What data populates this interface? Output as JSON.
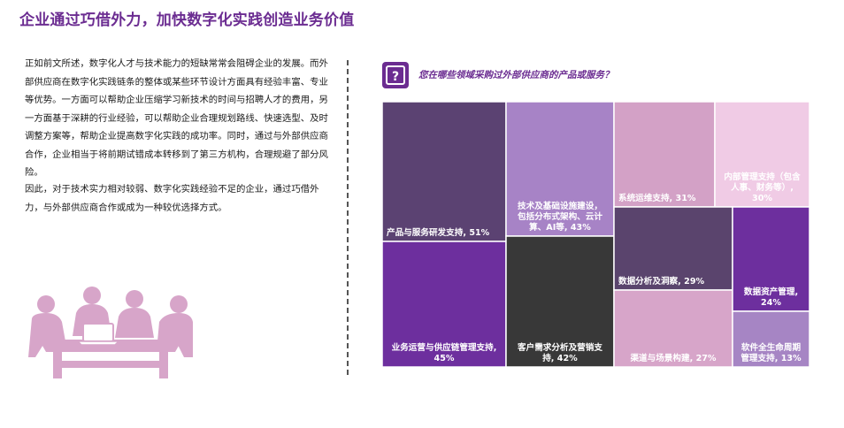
{
  "page": {
    "title": "企业通过巧借外力，加快数字化实践创造业务价值",
    "paragraph1": "正如前文所述，数字化人才与技术能力的短缺常常会阻碍企业的发展。而外部供应商在数字化实践链条的整体或某些环节设计方面具有经验丰富、专业等优势。一方面可以帮助企业压缩学习新技术的时间与招聘人才的费用，另一方面基于深耕的行业经验，可以帮助企业合理规划路线、快速选型、及时调整方案等，帮助企业提高数字化实践的成功率。同时，通过与外部供应商合作，企业相当于将前期试错成本转移到了第三方机构，合理规避了部分风险。",
    "paragraph2": "因此，对于技术实力相对较弱、数字化实践经验不足的企业，通过巧借外力，与外部供应商合作或成为一种较优选择方式。",
    "question_icon": "question-mark-icon",
    "illustration_icon": "business-meeting-icon",
    "accent_color": "#6b2c91"
  },
  "chart_data": {
    "type": "treemap",
    "title": "您在哪些领域采购过外部供应商的产品或服务？",
    "unit": "%",
    "items": [
      {
        "label": "产品与服务研发支持, 51%",
        "value": 51,
        "color": "#5b4272"
      },
      {
        "label": "业务运营与供应链管理支持, 45%",
        "value": 45,
        "color": "#6d2f9e"
      },
      {
        "label": "技术及基础设施建设, 包括分布式架构、云计算、AI等, 43%",
        "value": 43,
        "color": "#a783c6"
      },
      {
        "label": "客户需求分析及营销支持, 42%",
        "value": 42,
        "color": "#383838"
      },
      {
        "label": "系统运维支持, 31%",
        "value": 31,
        "color": "#d3a1c6"
      },
      {
        "label": "内部管理支持（包含人事、财务等）, 30%",
        "value": 30,
        "color": "#f0cbe5"
      },
      {
        "label": "数据分析及洞察, 29%",
        "value": 29,
        "color": "#5a446d"
      },
      {
        "label": "渠道与场景构建, 27%",
        "value": 27,
        "color": "#d7a5c9"
      },
      {
        "label": "数据资产管理, 24%",
        "value": 24,
        "color": "#6d2f9e"
      },
      {
        "label": "软件全生命周期管理支持, 13%",
        "value": 13,
        "color": "#a685c4"
      }
    ]
  }
}
